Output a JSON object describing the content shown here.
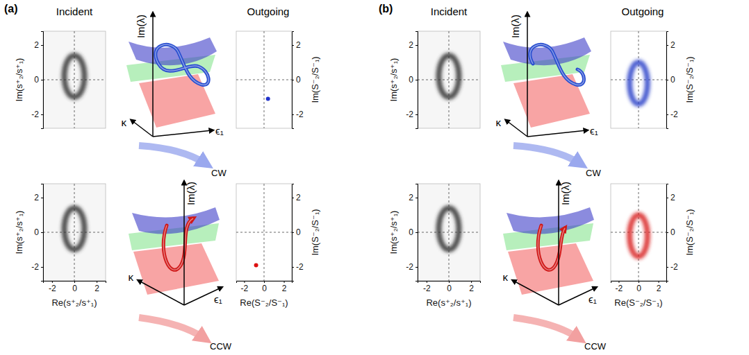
{
  "figure": {
    "panels": [
      {
        "label": "(a)",
        "incident": "Incident",
        "outgoing": "Outgoing",
        "cw": "CW",
        "ccw": "CCW"
      },
      {
        "label": "(b)",
        "incident": "Incident",
        "outgoing": "Outgoing",
        "cw": "CW",
        "ccw": "CCW"
      }
    ],
    "diagram_axes": {
      "vertical": "Im(λ)",
      "depth": "κ",
      "horizontal": "ϵ₁"
    }
  },
  "chart_data": [
    {
      "type": "ring",
      "ylabel": "Im(s⁺₂/s⁺₁)",
      "xlim": [
        -2.8,
        2.8
      ],
      "ylim": [
        -2.8,
        2.8
      ],
      "yticks": [
        -2,
        0,
        2
      ],
      "tick_labels": "y",
      "ref_lines": {
        "x": 0,
        "y": 0
      },
      "ring": {
        "x": 0,
        "y": 0.2,
        "rx": 0.9,
        "ry": 1.2
      },
      "color": "#333333"
    },
    {
      "type": "ring",
      "ylabel": "Im(s⁺₂/s⁺₁)",
      "xlabel": "Re(s⁺₂/s⁺₁)",
      "xlim": [
        -2.8,
        2.8
      ],
      "ylim": [
        -2.8,
        2.8
      ],
      "xticks": [
        -2,
        0,
        2
      ],
      "yticks": [
        -2,
        0,
        2
      ],
      "ref_lines": {
        "x": 0,
        "y": 0
      },
      "ring": {
        "x": 0,
        "y": 0.2,
        "rx": 0.9,
        "ry": 1.2
      },
      "color": "#333333"
    },
    {
      "type": "scatter",
      "ylabel": "Im(S⁻₂/S⁻₁)",
      "xlim": [
        -2.8,
        2.8
      ],
      "ylim": [
        -2.8,
        2.8
      ],
      "yticks": [
        -2,
        0,
        2
      ],
      "tick_labels": "y",
      "ref_lines": {
        "x": 0,
        "y": 0
      },
      "x": [
        0.4
      ],
      "values": [
        -1.1
      ],
      "color": "#2233cc"
    },
    {
      "type": "scatter",
      "ylabel": "Im(S⁻₂/S⁻₁)",
      "xlabel": "Re(S⁻₂/S⁻₁)",
      "xlim": [
        -2.8,
        2.8
      ],
      "ylim": [
        -2.8,
        2.8
      ],
      "xticks": [
        -2,
        0,
        2
      ],
      "yticks": [
        -2,
        0,
        2
      ],
      "ref_lines": {
        "x": 0,
        "y": 0
      },
      "x": [
        -0.8
      ],
      "values": [
        -1.9
      ],
      "color": "#dd1111"
    },
    {
      "type": "ring",
      "ylabel": "Im(s⁺₂/s⁺₁)",
      "xlim": [
        -2.8,
        2.8
      ],
      "ylim": [
        -2.8,
        2.8
      ],
      "yticks": [
        -2,
        0,
        2
      ],
      "tick_labels": "y",
      "ref_lines": {
        "x": 0,
        "y": 0
      },
      "ring": {
        "x": 0,
        "y": 0.2,
        "rx": 0.9,
        "ry": 1.2
      },
      "color": "#333333"
    },
    {
      "type": "ring",
      "ylabel": "Im(s⁺₂/s⁺₁)",
      "xlabel": "Re(s⁺₂/s⁺₁)",
      "xlim": [
        -2.8,
        2.8
      ],
      "ylim": [
        -2.8,
        2.8
      ],
      "xticks": [
        -2,
        0,
        2
      ],
      "yticks": [
        -2,
        0,
        2
      ],
      "ref_lines": {
        "x": 0,
        "y": 0
      },
      "ring": {
        "x": 0,
        "y": 0.2,
        "rx": 0.9,
        "ry": 1.2
      },
      "color": "#333333"
    },
    {
      "type": "ring",
      "ylabel": "Im(S⁻₂/S⁻₁)",
      "xlim": [
        -2.8,
        2.8
      ],
      "ylim": [
        -2.8,
        2.8
      ],
      "yticks": [
        -2,
        0,
        2
      ],
      "tick_labels": "y",
      "ref_lines": {
        "x": 0,
        "y": 0
      },
      "ring": {
        "x": 0,
        "y": -0.2,
        "rx": 0.9,
        "ry": 1.2
      },
      "color": "#2a3fc8"
    },
    {
      "type": "ring",
      "ylabel": "Im(S⁻₂/S⁻₁)",
      "xlabel": "Re(S⁻₂/S⁻₁)",
      "xlim": [
        -2.8,
        2.8
      ],
      "ylim": [
        -2.8,
        2.8
      ],
      "xticks": [
        -2,
        0,
        2
      ],
      "yticks": [
        -2,
        0,
        2
      ],
      "ref_lines": {
        "x": 0,
        "y": 0
      },
      "ring": {
        "x": 0,
        "y": -0.2,
        "rx": 0.9,
        "ry": 1.2
      },
      "color": "#d82020"
    }
  ]
}
